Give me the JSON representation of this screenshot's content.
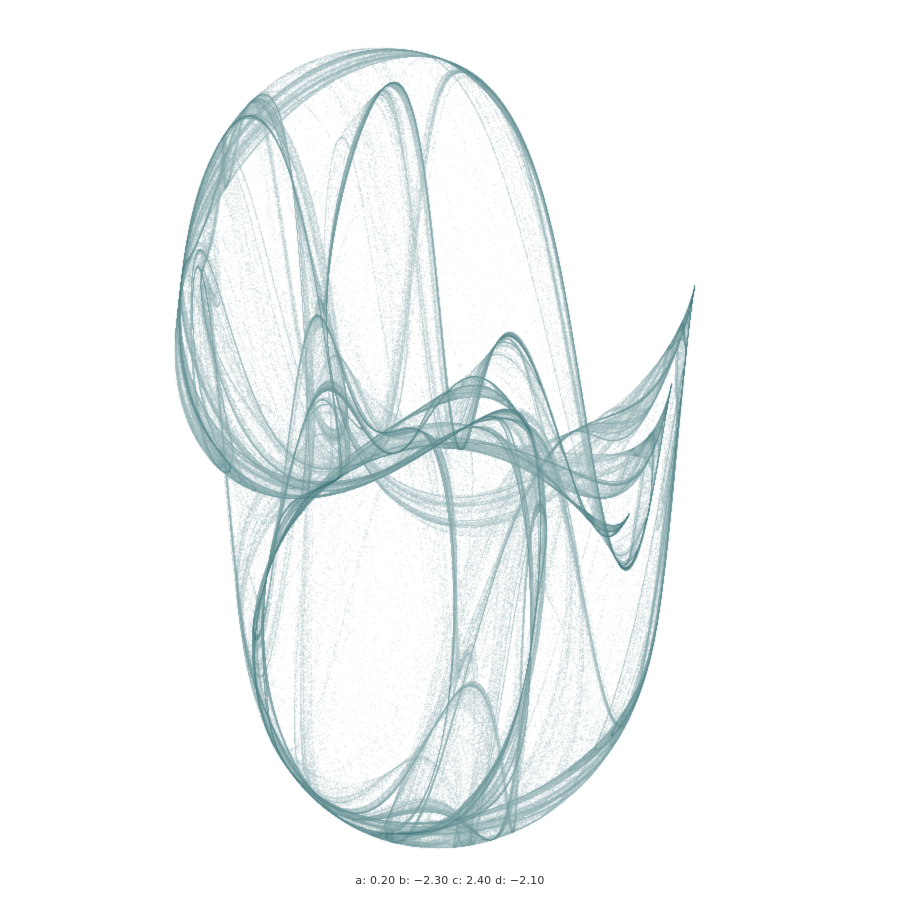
{
  "attractor": {
    "colors": {
      "background": "#ffffff",
      "ink": "#1f5f64"
    },
    "params": {
      "a": 0.2,
      "b": -2.3,
      "c": 2.4,
      "d": -2.1
    }
  },
  "caption": {
    "a_label": "a:",
    "a_value": "0.20",
    "b_label": "b:",
    "b_value": "−2.30",
    "c_label": "c:",
    "c_value": "2.40",
    "d_label": "d:",
    "d_value": "−2.10"
  }
}
